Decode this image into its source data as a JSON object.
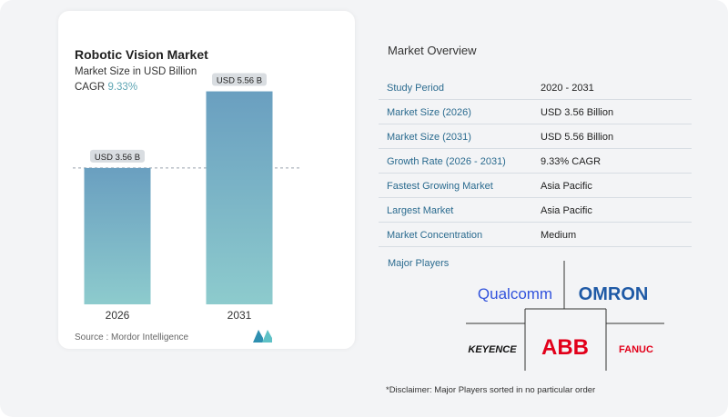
{
  "card": {
    "title": "Robotic Vision Market",
    "subtitle": "Market Size in USD Billion",
    "cagr_label": "CAGR",
    "cagr_value": "9.33%",
    "source": "Source :  Mordor Intelligence"
  },
  "chart_data": {
    "type": "bar",
    "categories": [
      "2026",
      "2031"
    ],
    "values": [
      3.56,
      5.56
    ],
    "data_labels": [
      "USD 3.56 B",
      "USD 5.56 B"
    ],
    "ylim": [
      0,
      6
    ],
    "colors": {
      "bar_top": "#6a9fc0",
      "bar_bottom": "#8dcbcd",
      "label_bg": "#d9dde1"
    },
    "reference_line_at": 3.56
  },
  "overview": {
    "title": "Market Overview",
    "rows": [
      {
        "k": "Study Period",
        "v": "2020 - 2031"
      },
      {
        "k": "Market Size (2026)",
        "v": "USD 3.56 Billion"
      },
      {
        "k": "Market Size (2031)",
        "v": "USD 5.56 Billion"
      },
      {
        "k": "Growth Rate (2026 - 2031)",
        "v": "9.33% CAGR"
      },
      {
        "k": "Fastest Growing Market",
        "v": "Asia Pacific"
      },
      {
        "k": "Largest Market",
        "v": "Asia Pacific"
      },
      {
        "k": "Market Concentration",
        "v": "Medium"
      }
    ],
    "players_title": "Major Players",
    "players": [
      "Qualcomm",
      "OMRON",
      "KEYENCE",
      "ABB",
      "FANUC"
    ],
    "player_colors": {
      "qualcomm": "#3253dc",
      "omron": "#1f5aa6",
      "keyence": "#111111",
      "abb": "#e2001a",
      "fanuc": "#e2001a"
    },
    "disclaimer": "*Disclaimer: Major Players sorted in no particular order"
  }
}
